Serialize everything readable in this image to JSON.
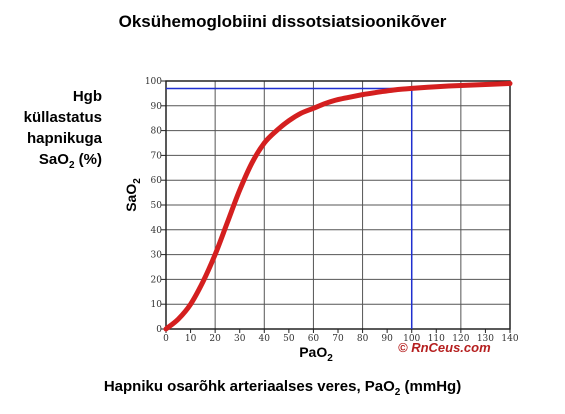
{
  "title": "Oksühemoglobiini dissotsiatsioonikõver",
  "side_label": {
    "line1": "Hgb",
    "line2": "küllastatus",
    "line3": "hapnikuga",
    "line4_main": "SaO",
    "line4_sub": "2",
    "line4_tail": " (%)"
  },
  "bottom_label": {
    "main": "Hapniku osarõhk arteriaalses veres, PaO",
    "sub": "2",
    "tail": " (mmHg)"
  },
  "watermark": "© RnCeus.com",
  "colors": {
    "curve": "#d41f1f",
    "guide": "#1f2fd0",
    "grid": "#555555",
    "watermark": "#b51f1f"
  },
  "chart_data": {
    "type": "line",
    "xlabel_main": "PaO",
    "xlabel_sub": "2",
    "ylabel_main": "SaO",
    "ylabel_sub": "2",
    "xlim": [
      0,
      140
    ],
    "ylim": [
      0,
      100
    ],
    "x_ticks": [
      0,
      10,
      20,
      30,
      40,
      50,
      60,
      70,
      80,
      90,
      100,
      110,
      120,
      130,
      140
    ],
    "y_ticks": [
      0,
      10,
      20,
      30,
      40,
      50,
      60,
      70,
      80,
      90,
      100
    ],
    "grid": true,
    "x_grid_step": 20,
    "y_grid_step": 10,
    "series": [
      {
        "x": [
          0,
          5,
          10,
          15,
          20,
          25,
          30,
          35,
          40,
          45,
          50,
          55,
          60,
          65,
          70,
          75,
          80,
          85,
          90,
          95,
          100,
          110,
          120,
          130,
          140
        ],
        "y": [
          0,
          4,
          10,
          19,
          30,
          43,
          56,
          67,
          75,
          80,
          84,
          87,
          89,
          91,
          92.5,
          93.5,
          94.5,
          95.3,
          96,
          96.6,
          97,
          97.7,
          98.2,
          98.6,
          99
        ]
      }
    ],
    "annotations": [
      {
        "type": "reference",
        "x": 100,
        "y": 97
      }
    ]
  }
}
